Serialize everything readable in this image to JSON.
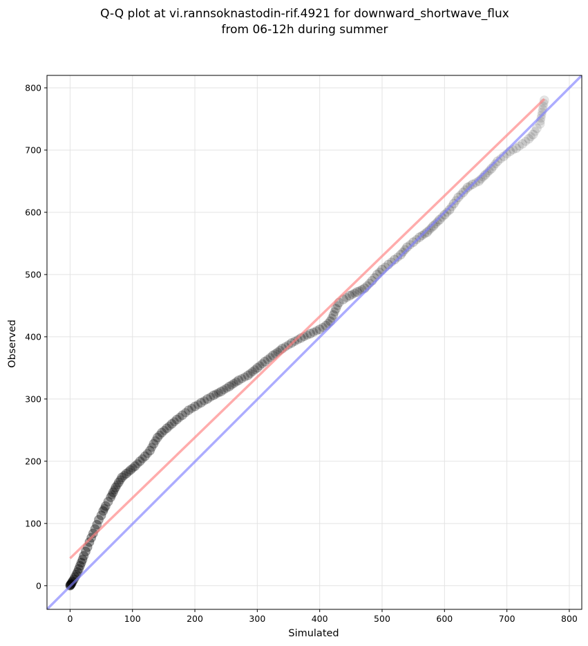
{
  "chart_data": {
    "type": "scatter",
    "title": [
      "Q-Q plot at vi.rannsoknastodin-rif.4921 for downward_shortwave_flux",
      "from 06-12h during summer"
    ],
    "xlabel": "Simulated",
    "ylabel": "Observed",
    "xlim": [
      -37,
      820
    ],
    "ylim": [
      -38,
      820
    ],
    "xticks": [
      0,
      100,
      200,
      300,
      400,
      500,
      600,
      700,
      800
    ],
    "yticks": [
      0,
      100,
      200,
      300,
      400,
      500,
      600,
      700,
      800
    ],
    "grid": true,
    "series": [
      {
        "kind": "scatter",
        "color": "#000000",
        "points": [
          [
            0,
            0
          ],
          [
            0.5,
            1
          ],
          [
            1,
            2
          ],
          [
            2,
            3
          ],
          [
            3,
            5
          ],
          [
            4,
            7
          ],
          [
            6,
            10
          ],
          [
            8,
            14
          ],
          [
            10,
            18
          ],
          [
            12,
            22
          ],
          [
            14,
            27
          ],
          [
            16,
            32
          ],
          [
            18,
            37
          ],
          [
            20,
            42
          ],
          [
            22,
            48
          ],
          [
            25,
            55
          ],
          [
            28,
            62
          ],
          [
            31,
            70
          ],
          [
            34,
            77
          ],
          [
            37,
            84
          ],
          [
            40,
            91
          ],
          [
            43,
            98
          ],
          [
            46,
            106
          ],
          [
            50,
            113
          ],
          [
            53,
            120
          ],
          [
            57,
            128
          ],
          [
            61,
            135
          ],
          [
            65,
            142
          ],
          [
            69,
            150
          ],
          [
            73,
            158
          ],
          [
            78,
            166
          ],
          [
            83,
            174
          ],
          [
            90,
            180
          ],
          [
            97,
            186
          ],
          [
            104,
            192
          ],
          [
            112,
            200
          ],
          [
            120,
            208
          ],
          [
            128,
            217
          ],
          [
            134,
            228
          ],
          [
            140,
            238
          ],
          [
            147,
            246
          ],
          [
            155,
            253
          ],
          [
            163,
            260
          ],
          [
            171,
            267
          ],
          [
            180,
            274
          ],
          [
            190,
            282
          ],
          [
            200,
            288
          ],
          [
            210,
            294
          ],
          [
            220,
            300
          ],
          [
            230,
            306
          ],
          [
            242,
            312
          ],
          [
            255,
            320
          ],
          [
            270,
            330
          ],
          [
            285,
            338
          ],
          [
            300,
            350
          ],
          [
            312,
            360
          ],
          [
            325,
            370
          ],
          [
            340,
            381
          ],
          [
            355,
            390
          ],
          [
            370,
            398
          ],
          [
            385,
            405
          ],
          [
            400,
            412
          ],
          [
            410,
            418
          ],
          [
            417,
            425
          ],
          [
            422,
            435
          ],
          [
            426,
            445
          ],
          [
            431,
            455
          ],
          [
            438,
            460
          ],
          [
            448,
            466
          ],
          [
            460,
            472
          ],
          [
            472,
            478
          ],
          [
            484,
            490
          ],
          [
            492,
            500
          ],
          [
            500,
            508
          ],
          [
            510,
            516
          ],
          [
            520,
            524
          ],
          [
            530,
            532
          ],
          [
            540,
            544
          ],
          [
            550,
            552
          ],
          [
            560,
            560
          ],
          [
            572,
            568
          ],
          [
            582,
            578
          ],
          [
            592,
            588
          ],
          [
            600,
            596
          ],
          [
            608,
            604
          ],
          [
            615,
            614
          ],
          [
            622,
            624
          ],
          [
            630,
            632
          ],
          [
            637,
            640
          ],
          [
            645,
            645
          ],
          [
            655,
            650
          ],
          [
            665,
            660
          ],
          [
            675,
            670
          ],
          [
            685,
            682
          ],
          [
            695,
            690
          ],
          [
            705,
            698
          ],
          [
            715,
            703
          ],
          [
            725,
            710
          ],
          [
            735,
            718
          ],
          [
            742,
            725
          ],
          [
            748,
            735
          ],
          [
            753,
            742
          ],
          [
            760,
            780
          ]
        ]
      },
      {
        "kind": "line",
        "color": "#ff8080",
        "points": [
          [
            0,
            44
          ],
          [
            760,
            782
          ]
        ]
      },
      {
        "kind": "line",
        "color": "#8080ff",
        "points": [
          [
            -37,
            -38
          ],
          [
            820,
            820
          ]
        ]
      }
    ]
  }
}
